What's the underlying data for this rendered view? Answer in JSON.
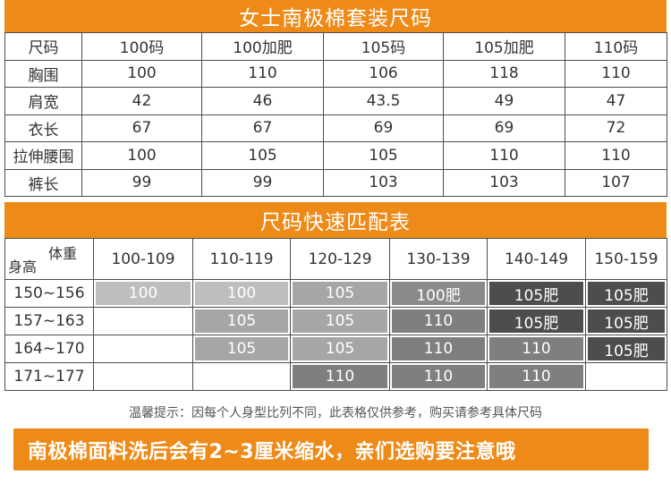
{
  "size_chart": {
    "title": "女士南极棉套装尺码",
    "header": [
      "尺码",
      "100码",
      "100加肥",
      "105码",
      "105加肥",
      "110码"
    ],
    "rows": [
      [
        "胸围",
        "100",
        "110",
        "106",
        "118",
        "110"
      ],
      [
        "肩宽",
        "42",
        "46",
        "43.5",
        "49",
        "47"
      ],
      [
        "衣长",
        "67",
        "67",
        "69",
        "69",
        "72"
      ],
      [
        "拉伸腰围",
        "100",
        "105",
        "105",
        "110",
        "110"
      ],
      [
        "裤长",
        "99",
        "99",
        "103",
        "103",
        "107"
      ]
    ]
  },
  "match_chart": {
    "title": "尺码快速匹配表",
    "corner_top": "体重",
    "corner_bottom": "身高",
    "weights": [
      "100-109",
      "110-119",
      "120-129",
      "130-139",
      "140-149",
      "150-159"
    ],
    "heights": [
      "150~156",
      "157~163",
      "164~170",
      "171~177"
    ],
    "cells": [
      [
        "100",
        "100",
        "105",
        "100肥",
        "105肥",
        "105肥"
      ],
      [
        "",
        "105",
        "105",
        "110",
        "105肥",
        "105肥"
      ],
      [
        "",
        "105",
        "105",
        "110",
        "110",
        "105肥"
      ],
      [
        "",
        "",
        "110",
        "110",
        "110",
        ""
      ]
    ],
    "cell_colors": [
      [
        "#bebebe",
        "#bebebe",
        "#a6a6a6",
        "#8a8a8a",
        "#4d4d4d",
        "#4d4d4d"
      ],
      [
        "",
        "#a6a6a6",
        "#a6a6a6",
        "#7f7f7f",
        "#4d4d4d",
        "#4d4d4d"
      ],
      [
        "",
        "#a6a6a6",
        "#a6a6a6",
        "#7f7f7f",
        "#7f7f7f",
        "#4d4d4d"
      ],
      [
        "",
        "",
        "#7f7f7f",
        "#7f7f7f",
        "#7f7f7f",
        ""
      ]
    ]
  },
  "note": "温馨提示：因每个人身型比列不同，此表格仅供参考，购买请参考具体尺码",
  "bottom_banner": "南极棉面料洗后会有2~3厘米缩水，亲们选购要注意哦",
  "colors": {
    "accent": "#ee8a18"
  }
}
